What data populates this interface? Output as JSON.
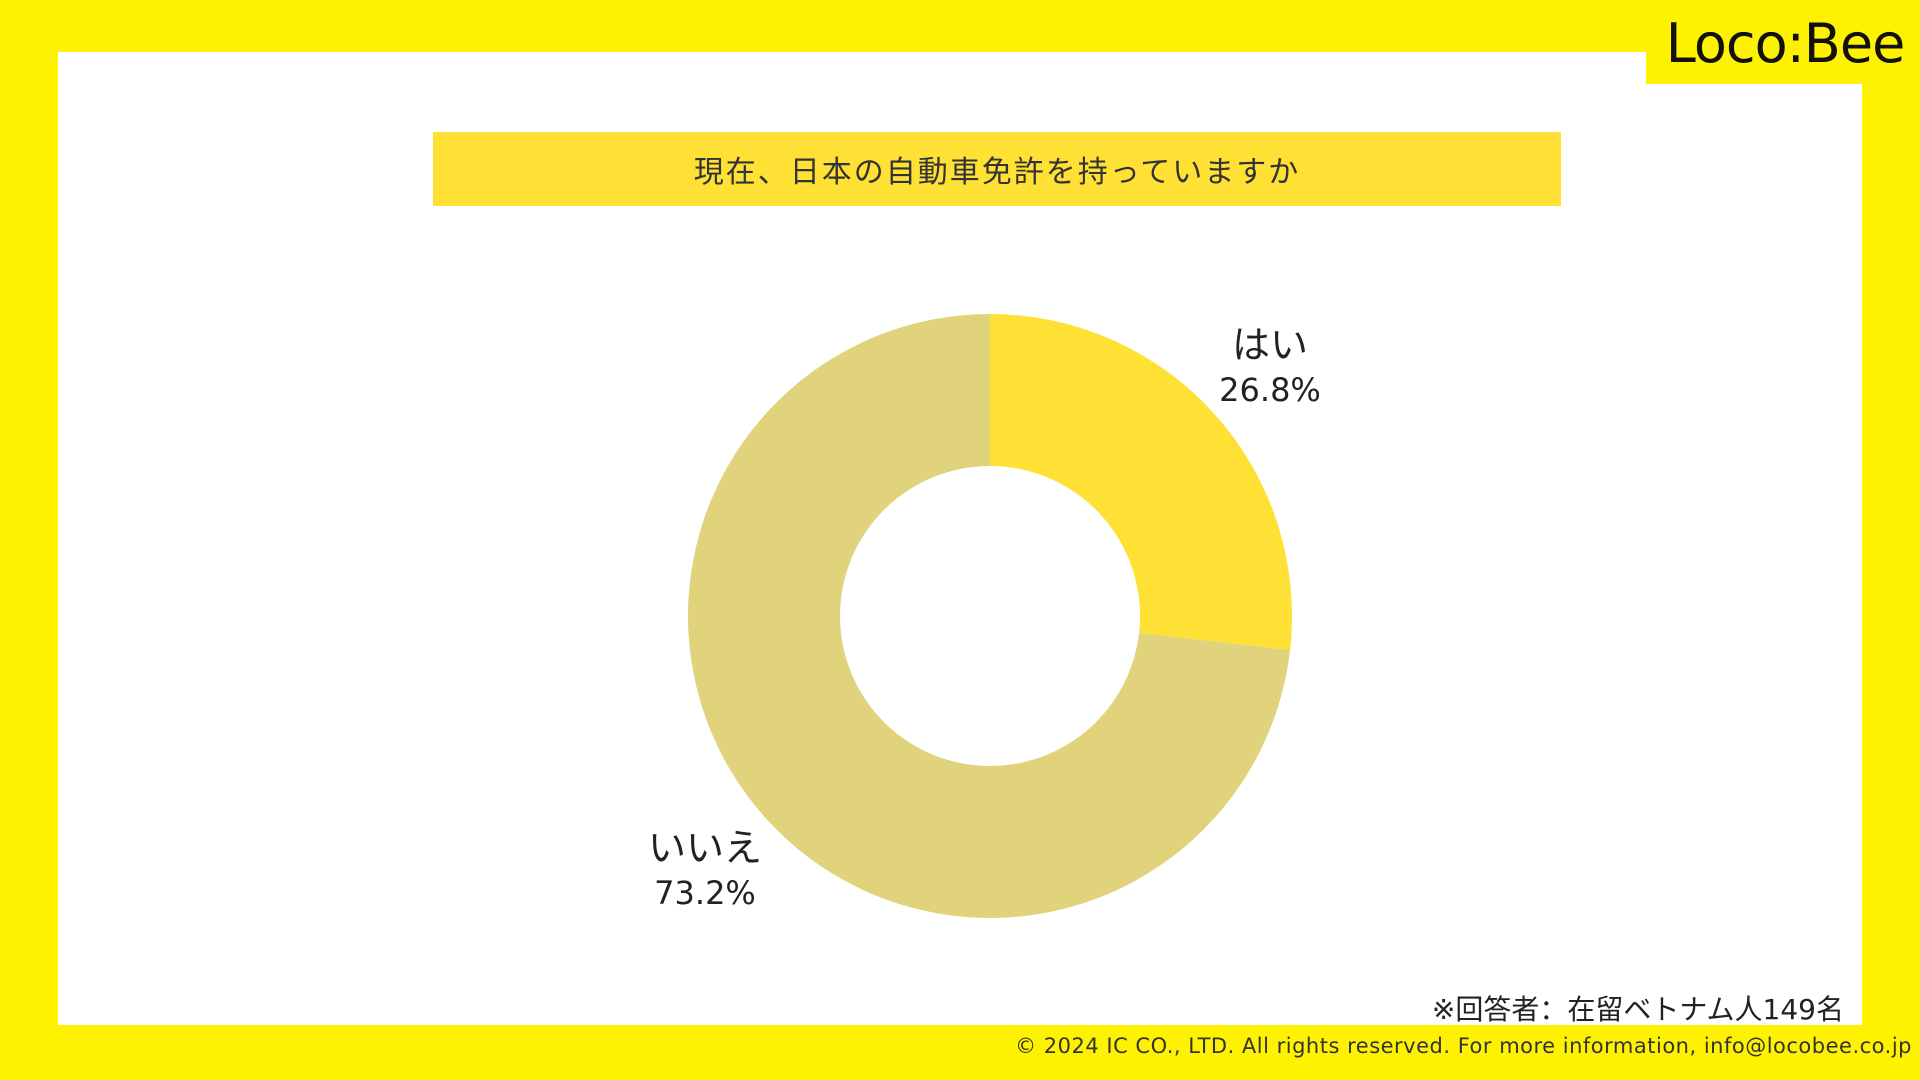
{
  "brand": {
    "logo_text": "Loco:Bee"
  },
  "colors": {
    "background": "#FFF200",
    "panel": "#FFFFFF",
    "title_bar": "#FFE135",
    "slice_yes": "#FFE135",
    "slice_no": "#E0D37C"
  },
  "chart_data": {
    "type": "pie",
    "subtype": "donut",
    "title": "現在、日本の自動車免許を持っていますか",
    "categories": [
      "はい",
      "いいえ"
    ],
    "values": [
      26.8,
      73.2
    ],
    "value_labels": [
      "26.8%",
      "73.2%"
    ],
    "colors": [
      "#FFE135",
      "#E0D37C"
    ],
    "start_angle": "12 o'clock",
    "direction": "clockwise"
  },
  "note": "※回答者：在留ベトナム人149名",
  "footer": "© 2024 IC CO., LTD. All rights reserved. For more information, info@locobee.co.jp"
}
